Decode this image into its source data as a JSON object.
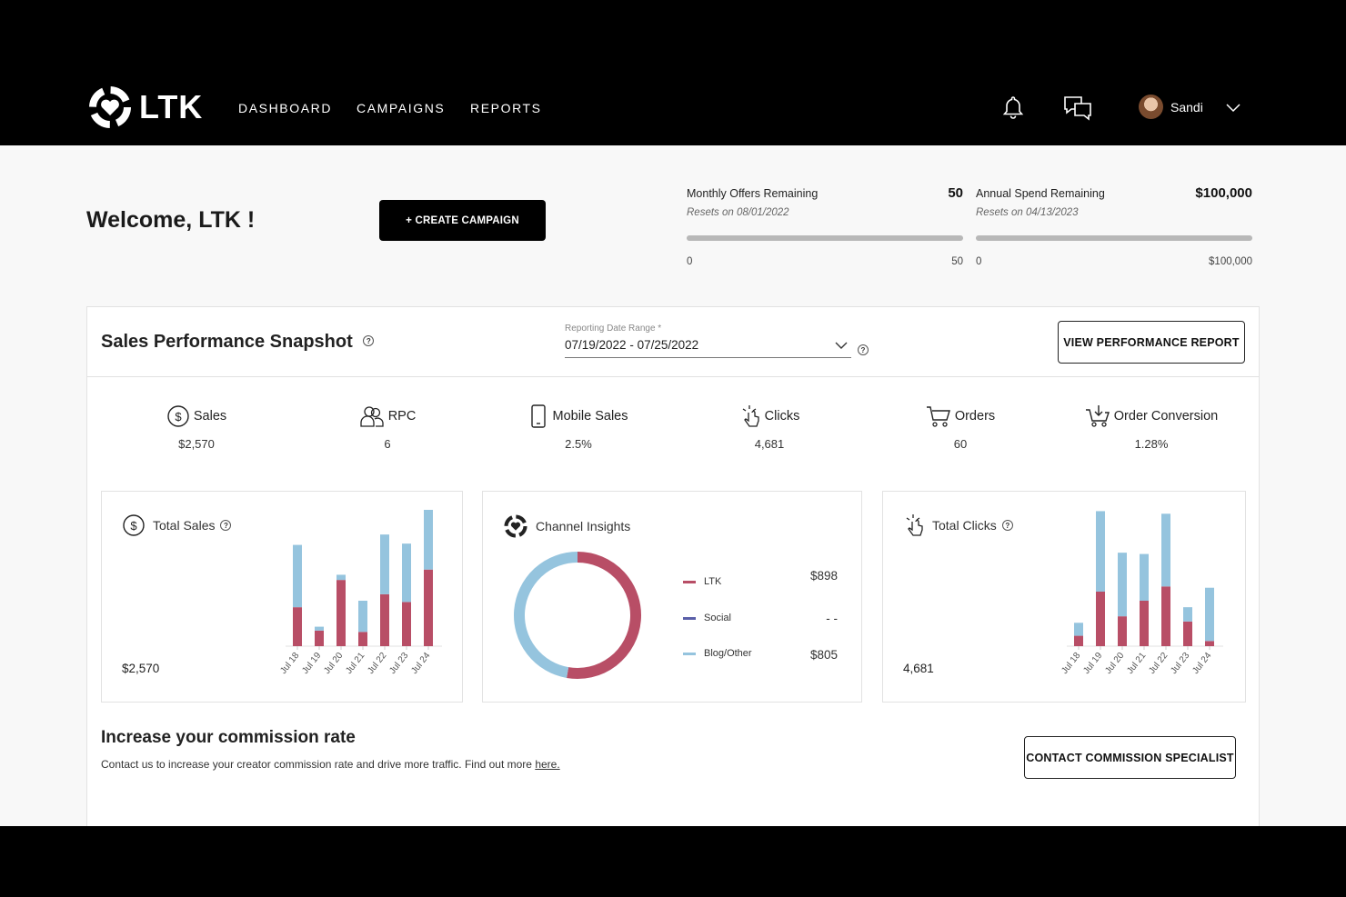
{
  "nav": {
    "brand": "LTK",
    "links": [
      "DASHBOARD",
      "CAMPAIGNS",
      "REPORTS"
    ],
    "user_name": "Sandi"
  },
  "welcome": {
    "title": "Welcome, LTK !",
    "create_button": "+ CREATE CAMPAIGN"
  },
  "meters": [
    {
      "label": "Monthly Offers Remaining",
      "value": "50",
      "sub": "Resets on 08/01/2022",
      "min": "0",
      "max": "50",
      "fill_fraction": 1.0
    },
    {
      "label": "Annual Spend Remaining",
      "value": "$100,000",
      "sub": "Resets on 04/13/2023",
      "min": "0",
      "max": "$100,000",
      "fill_fraction": 1.0
    }
  ],
  "snapshot": {
    "title": "Sales Performance Snapshot",
    "date_label": "Reporting Date Range *",
    "date_value": "07/19/2022 - 07/25/2022",
    "report_button": "VIEW PERFORMANCE REPORT"
  },
  "stats": [
    {
      "icon": "dollar-circle-icon",
      "label": "Sales",
      "value": "$2,570"
    },
    {
      "icon": "users-icon",
      "label": "RPC",
      "value": "6"
    },
    {
      "icon": "mobile-phone-icon",
      "label": "Mobile Sales",
      "value": "2.5%"
    },
    {
      "icon": "click-pointer-icon",
      "label": "Clicks",
      "value": "4,681"
    },
    {
      "icon": "cart-icon",
      "label": "Orders",
      "value": "60"
    },
    {
      "icon": "cart-download-icon",
      "label": "Order Conversion",
      "value": "1.28%"
    }
  ],
  "cards": {
    "sales": {
      "title": "Total Sales",
      "total": "$2,570"
    },
    "channel": {
      "title": "Channel Insights",
      "items": [
        {
          "name": "LTK",
          "value": "$898",
          "color": "#b84e66"
        },
        {
          "name": "Social",
          "value": "- -",
          "color": "#5a5fa8"
        },
        {
          "name": "Blog/Other",
          "value": "$805",
          "color": "#95c4de"
        }
      ]
    },
    "clicks": {
      "title": "Total Clicks",
      "total": "4,681"
    }
  },
  "colors": {
    "ltk": "#b84e66",
    "other": "#95c4de",
    "social": "#5a5fa8"
  },
  "chart_data": [
    {
      "type": "bar",
      "stacked": true,
      "categories": [
        "Jul 18",
        "Jul 19",
        "Jul 20",
        "Jul 21",
        "Jul 22",
        "Jul 23",
        "Jul 24"
      ],
      "series": [
        {
          "values": [
            30,
            12,
            51,
            11,
            40,
            34,
            59
          ]
        },
        {
          "values": [
            48,
            3,
            4,
            24,
            46,
            45,
            46
          ]
        }
      ],
      "ylim": [
        0,
        105
      ]
    },
    {
      "type": "pie",
      "donut": true,
      "labels": [
        "LTK",
        "Social",
        "Blog/Other"
      ],
      "values": [
        898,
        0,
        805
      ]
    },
    {
      "type": "bar",
      "stacked": true,
      "categories": [
        "Jul 18",
        "Jul 19",
        "Jul 20",
        "Jul 21",
        "Jul 22",
        "Jul 23",
        "Jul 24"
      ],
      "series": [
        {
          "values": [
            8,
            42,
            23,
            35,
            46,
            19,
            4
          ]
        },
        {
          "values": [
            10,
            62,
            49,
            36,
            56,
            11,
            41
          ]
        }
      ],
      "ylim": [
        0,
        105
      ]
    }
  ],
  "commission": {
    "title": "Increase your commission rate",
    "text": "Contact us to increase your creator commission rate and drive more traffic. Find out more ",
    "link": "here.",
    "button": "CONTACT COMMISSION SPECIALIST"
  }
}
